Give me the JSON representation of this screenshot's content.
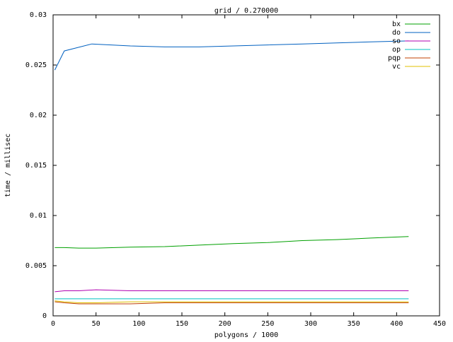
{
  "chart_data": {
    "type": "line",
    "title": "grid / 0.270000",
    "xlabel": "polygons / 1000",
    "ylabel": "time / millisec",
    "xlim": [
      0,
      450
    ],
    "ylim": [
      0,
      0.03
    ],
    "xticks": [
      0,
      50,
      100,
      150,
      200,
      250,
      300,
      350,
      400,
      450
    ],
    "yticks": [
      0,
      0.005,
      0.01,
      0.015,
      0.02,
      0.025,
      0.03
    ],
    "ytick_labels": [
      "0",
      "0.005",
      "0.01",
      "0.015",
      "0.02",
      "0.025",
      "0.03"
    ],
    "grid": false,
    "legend_position": "top-right",
    "series": [
      {
        "name": "bx",
        "color": "#00a000",
        "x": [
          2,
          13,
          30,
          50,
          90,
          130,
          170,
          210,
          250,
          290,
          330,
          370,
          414
        ],
        "y": [
          0.0068,
          0.0068,
          0.00675,
          0.00675,
          0.00685,
          0.0069,
          0.00705,
          0.0072,
          0.0073,
          0.0075,
          0.0076,
          0.00775,
          0.0079
        ]
      },
      {
        "name": "do",
        "color": "#0060c0",
        "x": [
          2,
          13,
          45,
          90,
          130,
          170,
          210,
          250,
          290,
          330,
          370,
          414
        ],
        "y": [
          0.0245,
          0.0264,
          0.0271,
          0.0269,
          0.0268,
          0.0268,
          0.0269,
          0.027,
          0.0271,
          0.0272,
          0.0273,
          0.0274
        ]
      },
      {
        "name": "so",
        "color": "#b000b0",
        "x": [
          2,
          13,
          30,
          50,
          90,
          130,
          170,
          210,
          250,
          290,
          330,
          370,
          414
        ],
        "y": [
          0.0024,
          0.0025,
          0.0025,
          0.0026,
          0.0025,
          0.0025,
          0.0025,
          0.0025,
          0.0025,
          0.0025,
          0.0025,
          0.0025,
          0.0025
        ]
      },
      {
        "name": "op",
        "color": "#00c0c0",
        "x": [
          2,
          13,
          30,
          50,
          90,
          130,
          170,
          210,
          250,
          290,
          330,
          370,
          414
        ],
        "y": [
          0.0017,
          0.0017,
          0.0017,
          0.0017,
          0.0017,
          0.0017,
          0.0017,
          0.0017,
          0.0017,
          0.0017,
          0.0017,
          0.0017,
          0.0017
        ]
      },
      {
        "name": "pqp",
        "color": "#c04000",
        "x": [
          2,
          13,
          30,
          50,
          90,
          130,
          170,
          210,
          250,
          290,
          330,
          370,
          414
        ],
        "y": [
          0.0014,
          0.0013,
          0.0012,
          0.0012,
          0.0012,
          0.0013,
          0.0013,
          0.0013,
          0.0013,
          0.0013,
          0.0013,
          0.0013,
          0.0013
        ]
      },
      {
        "name": "vc",
        "color": "#e0c000",
        "x": [
          2,
          13,
          30,
          50,
          90,
          130,
          170,
          210,
          250,
          290,
          330,
          370,
          414
        ],
        "y": [
          0.0015,
          0.0014,
          0.0013,
          0.0013,
          0.0014,
          0.0014,
          0.0014,
          0.0014,
          0.0014,
          0.0014,
          0.0014,
          0.0014,
          0.0014
        ]
      }
    ]
  }
}
